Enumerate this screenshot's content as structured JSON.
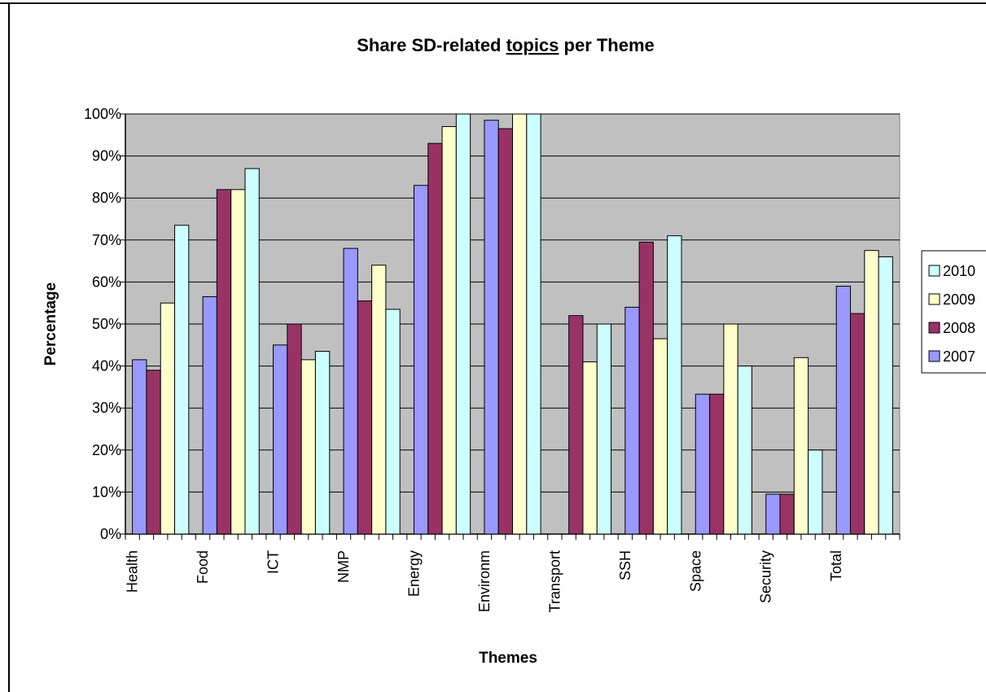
{
  "chart_data": {
    "type": "bar",
    "title_pre": "Share SD-related ",
    "title_underlined": "topics",
    "title_post": " per Theme",
    "xlabel": "Themes",
    "ylabel": "Percentage",
    "ylim": [
      0,
      100
    ],
    "yticks": [
      "0%",
      "10%",
      "20%",
      "30%",
      "40%",
      "50%",
      "60%",
      "70%",
      "80%",
      "90%",
      "100%"
    ],
    "grid": true,
    "legend_position": "right",
    "plot_background": "#c0c0c0",
    "categories": [
      "Health",
      "Food",
      "ICT",
      "NMP",
      "Energy",
      "Environm",
      "Transport",
      "SSH",
      "Space",
      "Security",
      "Total"
    ],
    "series": [
      {
        "name": "2007",
        "color": "#9999ff",
        "values": [
          41.5,
          56.5,
          45,
          68,
          83,
          98.5,
          0,
          54,
          33.3,
          9.5,
          59
        ]
      },
      {
        "name": "2008",
        "color": "#993366",
        "values": [
          39,
          82,
          50,
          55.5,
          93,
          96.5,
          52,
          69.5,
          33.3,
          9.5,
          52.5
        ]
      },
      {
        "name": "2009",
        "color": "#ffffcc",
        "values": [
          55,
          82,
          41.5,
          64,
          97,
          100,
          41,
          46.5,
          50,
          42,
          67.5
        ]
      },
      {
        "name": "2010",
        "color": "#ccffff",
        "values": [
          73.5,
          87,
          43.5,
          53.5,
          100,
          100,
          50,
          71,
          40,
          20,
          66
        ]
      }
    ],
    "legend_order": [
      "2010",
      "2009",
      "2008",
      "2007"
    ]
  }
}
